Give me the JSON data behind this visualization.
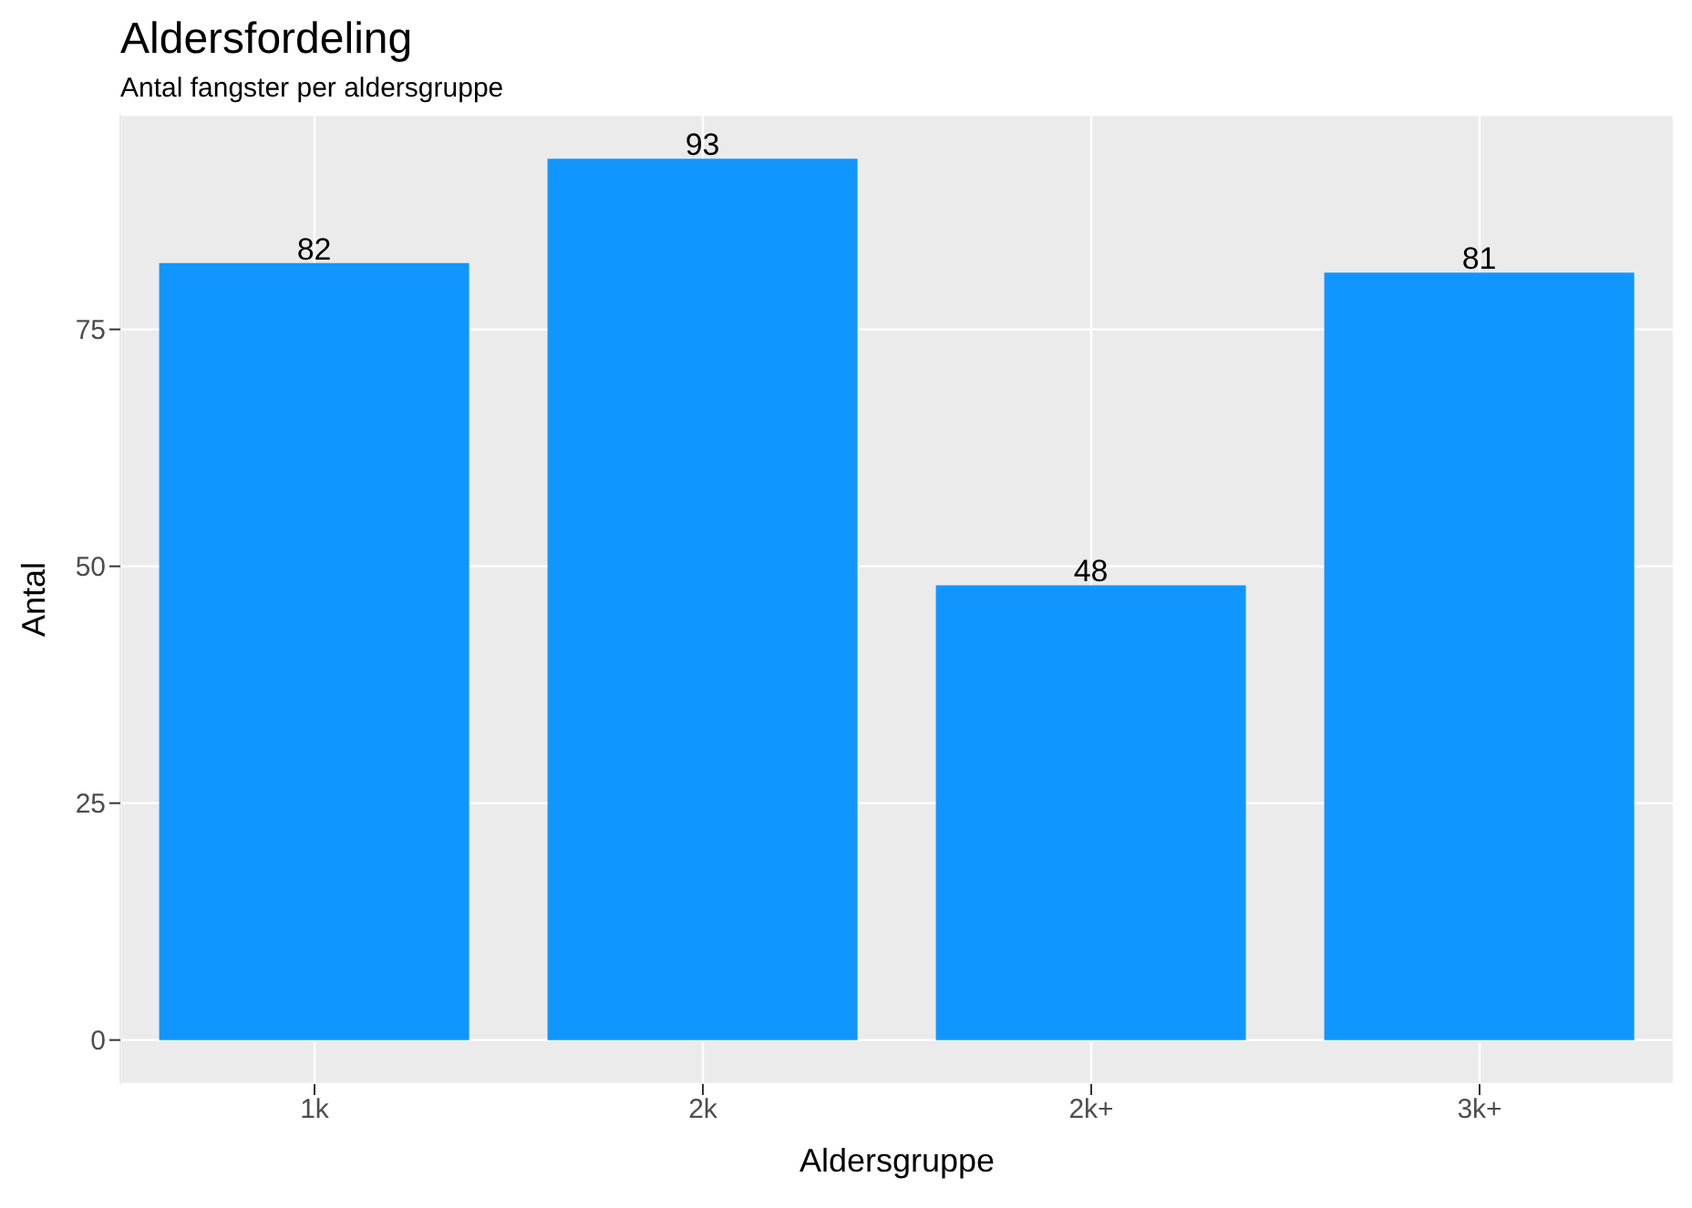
{
  "chart_data": {
    "type": "bar",
    "title": "Aldersfordeling",
    "subtitle": "Antal fangster per aldersgruppe",
    "xlabel": "Aldersgruppe",
    "ylabel": "Antal",
    "categories": [
      "1k",
      "2k",
      "2k+",
      "3k+"
    ],
    "values": [
      82,
      93,
      48,
      81
    ],
    "color": "#1196ff",
    "ylim": [
      -4.65,
      97.65
    ],
    "yticks": [
      0,
      25,
      50,
      75
    ],
    "grid": true,
    "data_labels": true
  }
}
